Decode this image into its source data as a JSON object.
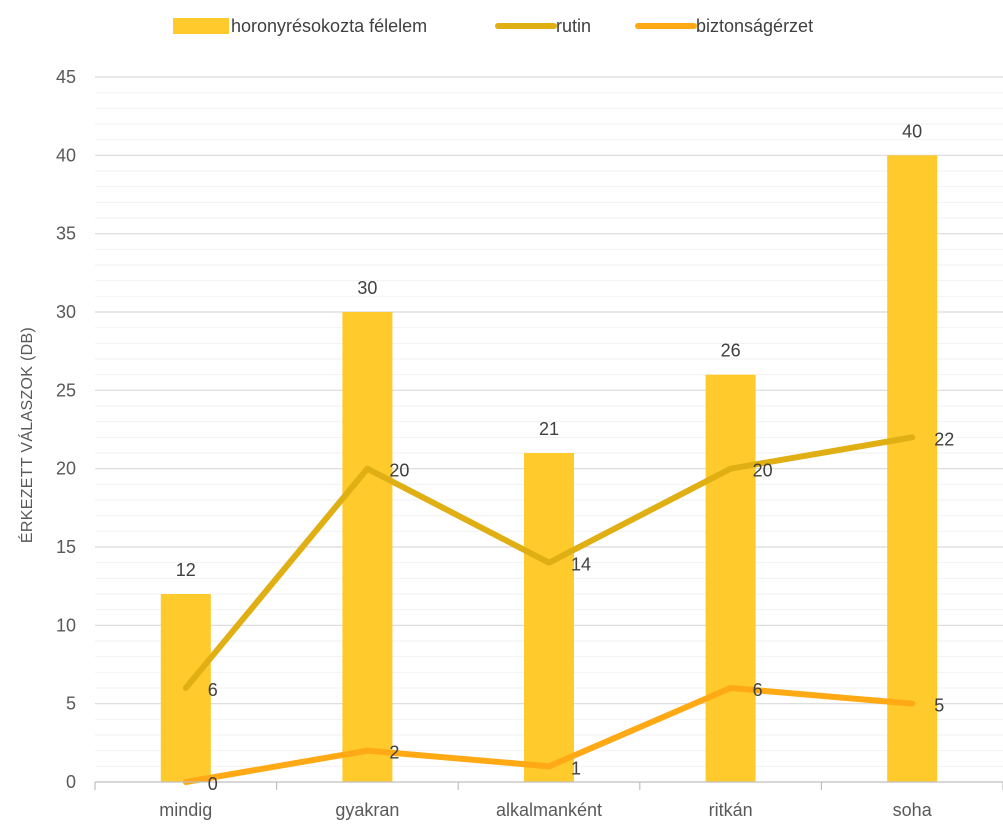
{
  "chart_data": {
    "type": "bar",
    "categories": [
      "mindig",
      "gyakran",
      "alkalmanként",
      "ritkán",
      "soha"
    ],
    "series": [
      {
        "name": "horonyrésokozta félelem",
        "type": "bar",
        "color": "#FFCA2C",
        "values": [
          12,
          30,
          21,
          26,
          40
        ]
      },
      {
        "name": "rutin",
        "type": "line",
        "color": "#E0AF14",
        "values": [
          6,
          20,
          14,
          20,
          22
        ]
      },
      {
        "name": "biztonságérzet",
        "type": "line",
        "color": "#FFA914",
        "values": [
          0,
          2,
          1,
          6,
          5
        ]
      }
    ],
    "ylabel": "ÉRKEZETT VÁLASZOK (DB)",
    "xlabel": "",
    "ylim": [
      0,
      45
    ],
    "yticks": [
      0,
      5,
      10,
      15,
      20,
      25,
      30,
      35,
      40,
      45
    ],
    "grid": true,
    "minor_grid": true,
    "legend_position": "top"
  }
}
